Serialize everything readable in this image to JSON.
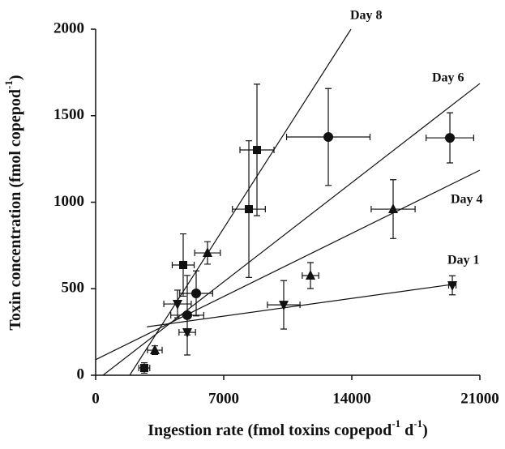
{
  "chart_data": {
    "type": "scatter",
    "x_label": [
      "Ingestion rate (fmol toxins copepod",
      "-1",
      " d",
      "-1",
      ")"
    ],
    "y_label": [
      "Toxin concentration (fmol copepod",
      "-1",
      ")"
    ],
    "xlim": [
      0,
      21000
    ],
    "xticks": [
      0,
      7000,
      14000,
      21000
    ],
    "ylim": [
      0,
      2000
    ],
    "yticks": [
      0,
      500,
      1000,
      1500,
      2000
    ],
    "series": [
      {
        "name": "Day 1",
        "marker": "triangle-down",
        "color": "#111",
        "x": [
          4475,
          5007,
          10279,
          19495
        ],
        "values": [
          412,
          248,
          407,
          520
        ],
        "xerr": [
          750,
          450,
          890,
          200
        ],
        "yerr": [
          80,
          15,
          140,
          55
        ],
        "line": {
          "x": [
            2800,
            19500
          ],
          "y": [
            280,
            525
          ]
        }
      },
      {
        "name": "Day 4",
        "marker": "triangle-up",
        "color": "#111",
        "x": [
          3234,
          6114,
          11741,
          16260
        ],
        "values": [
          145,
          707,
          576,
          960
        ],
        "xerr": [
          400,
          700,
          450,
          1200
        ],
        "yerr": [
          25,
          65,
          75,
          170
        ],
        "line": {
          "x": [
            0,
            21000
          ],
          "y": [
            90,
            1185
          ]
        }
      },
      {
        "name": "Day 6",
        "marker": "circle",
        "color": "#111",
        "x": [
          5007,
          5494,
          12716,
          19362
        ],
        "values": [
          347,
          473,
          1377,
          1372
        ],
        "xerr": [
          900,
          900,
          2280,
          1300
        ],
        "yerr": [
          230,
          130,
          280,
          145
        ],
        "line": {
          "x": [
            400,
            21000
          ],
          "y": [
            0,
            1686
          ]
        }
      },
      {
        "name": "Day 8",
        "marker": "square",
        "color": "#111",
        "x": [
          2658,
          4785,
          8374,
          8817
        ],
        "values": [
          42,
          637,
          960,
          1302
        ],
        "xerr": [
          300,
          600,
          900,
          930
        ],
        "yerr": [
          30,
          180,
          395,
          380
        ],
        "line": {
          "x": [
            1860,
            13956
          ],
          "y": [
            0,
            2000
          ]
        }
      }
    ]
  }
}
